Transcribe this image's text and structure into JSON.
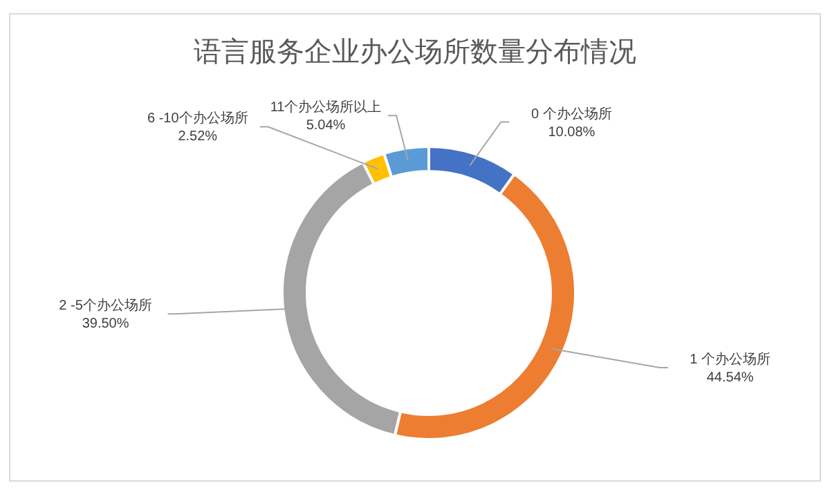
{
  "chart_data": {
    "type": "donut",
    "title": "语言服务企业办公场所数量分布情况",
    "categories": [
      "0 个办公场所",
      "1 个办公场所",
      "2 -5个办公场所",
      "6 -10个办公场所",
      "11个办公场所以上"
    ],
    "values": [
      10.08,
      44.54,
      39.5,
      2.52,
      5.04
    ],
    "value_labels": [
      "10.08%",
      "44.54%",
      "39.50%",
      "2.52%",
      "5.04%"
    ],
    "colors": [
      "#4472c4",
      "#ed7d31",
      "#a5a5a5",
      "#ffc000",
      "#5b9bd5"
    ],
    "legend": false
  }
}
